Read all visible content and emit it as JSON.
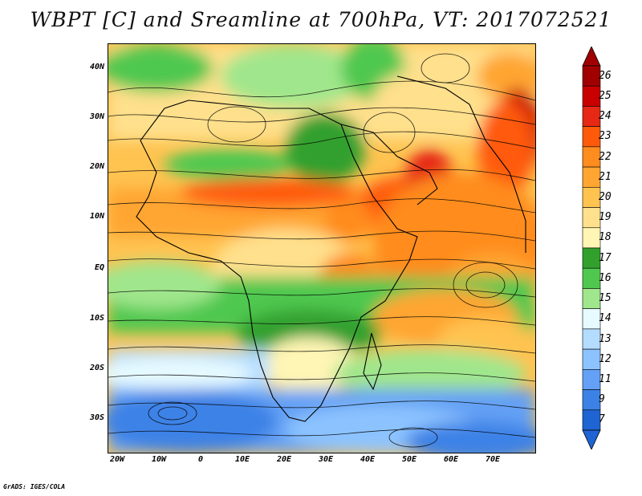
{
  "title": "WBPT [C] and Sreamline at 700hPa, VT: 2017072521",
  "credit": "GrADS: IGES/COLA",
  "map": {
    "lat_labels": [
      "40N",
      "30N",
      "20N",
      "10N",
      "EQ",
      "10S",
      "20S",
      "30S"
    ],
    "lon_labels": [
      "20W",
      "10W",
      "0",
      "10E",
      "20E",
      "30E",
      "40E",
      "50E",
      "60E",
      "70E"
    ],
    "lon_range": [
      -22,
      80
    ],
    "lat_range": [
      -37,
      45
    ]
  },
  "colorbar": {
    "labels": [
      "26",
      "25",
      "24",
      "23",
      "22",
      "21",
      "20",
      "19",
      "18",
      "17",
      "16",
      "15",
      "14",
      "13",
      "12",
      "11",
      "9",
      "7"
    ],
    "colors": [
      "#a00000",
      "#c80000",
      "#e62814",
      "#ff5a0a",
      "#ff8c1e",
      "#ffa532",
      "#ffc350",
      "#ffe08c",
      "#fff5b4",
      "#32a02d",
      "#50c850",
      "#a0e68c",
      "#e6faff",
      "#b4dcff",
      "#8cc3ff",
      "#64a0f5",
      "#3c82e6",
      "#1e64d2"
    ]
  }
}
